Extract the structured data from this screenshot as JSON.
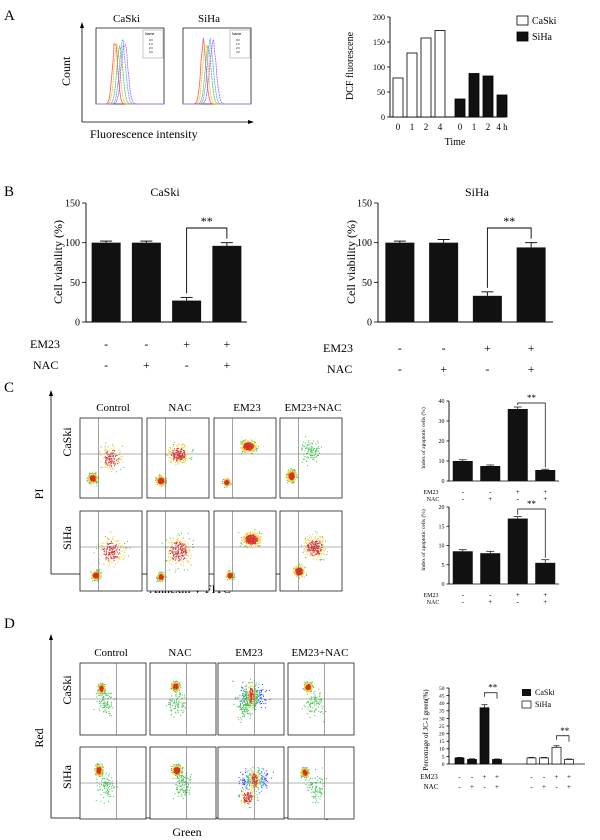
{
  "panel_labels": [
    "A",
    "B",
    "C",
    "D"
  ],
  "cell_lines": [
    "CaSki",
    "SiHa"
  ],
  "panel_a": {
    "flow_xlabel": "Fluorescence intensity",
    "flow_ylabel": "Count",
    "flow_titles": [
      "CaSki",
      "SiHa"
    ],
    "legend_head": "Name",
    "legend_rows": [
      "0 h",
      "1 h",
      "2 h",
      "4 h"
    ],
    "series_colors": [
      "#ff5a5a",
      "#f0c030",
      "#4fc24f",
      "#59a0ff",
      "#b05cff"
    ],
    "chart_title_note": ""
  },
  "legend_labels": [
    "CaSki",
    "SiHa"
  ],
  "treatments": {
    "em23_label": "EM23",
    "nac_label": "NAC",
    "em23": [
      "-",
      "-",
      "+",
      "+"
    ],
    "nac": [
      "-",
      "+",
      "-",
      "+"
    ]
  },
  "quadrant_columns": [
    "Control",
    "NAC",
    "EM23",
    "EM23+NAC"
  ],
  "panel_c_xlabel": "Annexin V-FITC",
  "panel_c_ylabel": "PI",
  "panel_d_xlabel": "Green",
  "panel_d_ylabel": "Red",
  "significance": "**",
  "chart_data": [
    {
      "id": "A_dcf",
      "type": "bar",
      "title": "",
      "xlabel": "Time",
      "ylabel": "DCF fluorescene",
      "ylim": [
        0,
        200
      ],
      "yticks": [
        0,
        50,
        100,
        150,
        200
      ],
      "groups": [
        {
          "name": "CaSki",
          "categories": [
            "0",
            "1",
            "2",
            "4"
          ],
          "values": [
            78,
            128,
            158,
            173
          ]
        },
        {
          "name": "SiHa",
          "categories": [
            "0",
            "1",
            "2",
            "4 h"
          ],
          "values": [
            36,
            87,
            82,
            44
          ]
        }
      ]
    },
    {
      "id": "B_caski",
      "type": "bar",
      "title": "CaSki",
      "xlabel": "",
      "ylabel": "Cell viability (%)",
      "ylim": [
        0,
        150
      ],
      "yticks": [
        0,
        50,
        100,
        150
      ],
      "values": [
        100,
        100,
        27,
        96
      ],
      "errors": [
        2,
        2,
        4,
        4
      ]
    },
    {
      "id": "B_siha",
      "type": "bar",
      "title": "SiHa",
      "xlabel": "",
      "ylabel": "Cell viability (%)",
      "ylim": [
        0,
        150
      ],
      "yticks": [
        0,
        50,
        100,
        150
      ],
      "values": [
        100,
        100,
        33,
        94
      ],
      "errors": [
        2,
        4,
        5,
        6
      ]
    },
    {
      "id": "C_caski",
      "type": "bar",
      "title": "",
      "xlabel": "",
      "ylabel": "Index of apoptotic cells (%)",
      "ylim": [
        0,
        40
      ],
      "yticks": [
        0,
        10,
        20,
        30,
        40
      ],
      "values": [
        10,
        7.5,
        36,
        5.5
      ],
      "errors": [
        0.6,
        0.5,
        1.0,
        0.4
      ]
    },
    {
      "id": "C_siha",
      "type": "bar",
      "title": "",
      "xlabel": "",
      "ylabel": "Index of apoptotic cells (%)",
      "ylim": [
        0,
        20
      ],
      "yticks": [
        0,
        5,
        10,
        15,
        20
      ],
      "values": [
        8.5,
        8,
        17,
        5.5
      ],
      "errors": [
        0.4,
        0.5,
        0.5,
        0.8
      ]
    },
    {
      "id": "D_jc1",
      "type": "bar",
      "title": "",
      "xlabel": "",
      "ylabel": "Percentage of JC-1 green(%)",
      "ylim": [
        0,
        50
      ],
      "yticks": [
        0,
        5,
        10,
        15,
        20,
        25,
        30,
        35,
        40,
        45,
        50
      ],
      "series": [
        {
          "name": "CaSki",
          "values": [
            4,
            3,
            37,
            3
          ],
          "errors": [
            0.3,
            0.4,
            2,
            0.3
          ]
        },
        {
          "name": "SiHa",
          "values": [
            4,
            4,
            11,
            3
          ],
          "errors": [
            0.3,
            0.3,
            1,
            0.3
          ]
        }
      ]
    }
  ]
}
